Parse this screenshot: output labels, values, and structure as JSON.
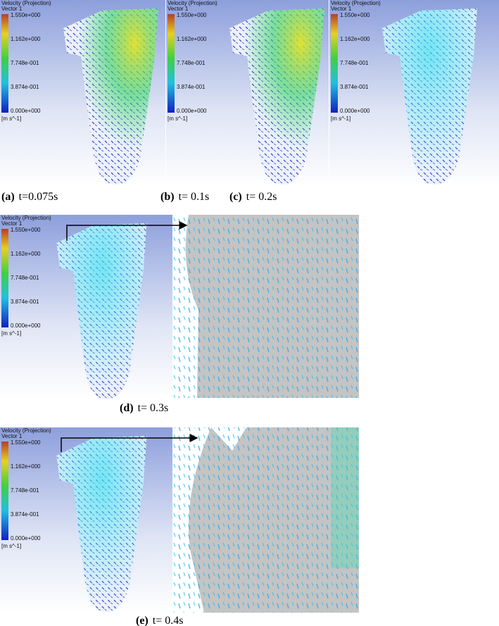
{
  "panels": [
    {
      "legend": {
        "title": "Velocity (Projection)",
        "subtitle": "Vector 1",
        "ticks": [
          "1.550e+000",
          "1.162e+000",
          "7.748e-001",
          "3.874e-001",
          "0.000e+000"
        ],
        "unit": "[m s^-1]"
      },
      "caption": {
        "label": "(a)",
        "text": "t=0.075s"
      }
    },
    {
      "legend": {
        "title": "Velocity (Projection)",
        "subtitle": "Vector 1",
        "ticks": [
          "1.550e+000",
          "1.162e+000",
          "7.748e-001",
          "3.874e-001",
          "0.000e+000"
        ],
        "unit": "[m s^-1]"
      },
      "caption": {
        "label": "(b)",
        "text": "t= 0.1s"
      }
    },
    {
      "legend": {
        "title": "Velocity (Projection)",
        "subtitle": "Vector 1",
        "ticks": [
          "1.550e+000",
          "1.162e+000",
          "7.748e-001",
          "3.874e-001",
          "0.000e+000"
        ],
        "unit": "[m s^-1]"
      },
      "caption": {
        "label": "(c)",
        "text": "t= 0.2s"
      }
    },
    {
      "legend": {
        "title": "Velocity (Projection)",
        "subtitle": "Vector 1",
        "ticks": [
          "1.550e+000",
          "1.162e+000",
          "7.748e-001",
          "3.874e-001",
          "0.000e+000"
        ],
        "unit": "[m s^-1]"
      },
      "caption": {
        "label": "(d)",
        "text": "t= 0.3s"
      }
    },
    {
      "legend": {
        "title": "Velocity (Projection)",
        "subtitle": "Vector 1",
        "ticks": [
          "1.550e+000",
          "1.162e+000",
          "7.748e-001",
          "3.874e-001",
          "0.000e+000"
        ],
        "unit": "[m s^-1]"
      },
      "caption": {
        "label": "(e)",
        "text": "t= 0.4s"
      }
    }
  ]
}
